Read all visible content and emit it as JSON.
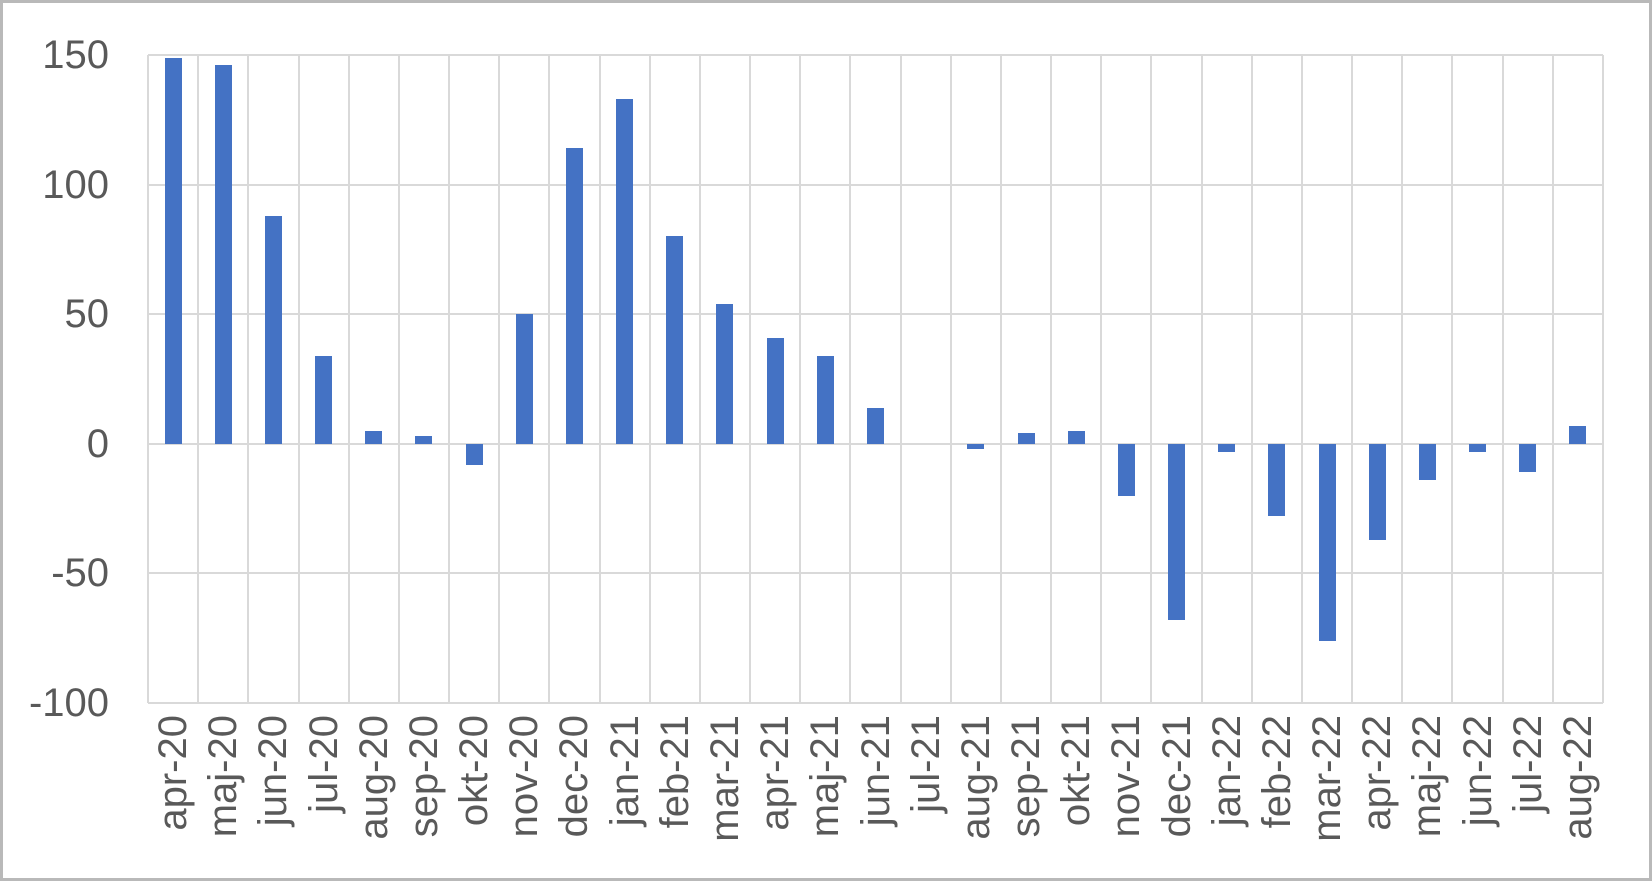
{
  "chart_data": {
    "type": "bar",
    "title": "",
    "xlabel": "",
    "ylabel": "",
    "categories": [
      "apr-20",
      "maj-20",
      "jun-20",
      "jul-20",
      "aug-20",
      "sep-20",
      "okt-20",
      "nov-20",
      "dec-20",
      "jan-21",
      "feb-21",
      "mar-21",
      "apr-21",
      "maj-21",
      "jun-21",
      "jul-21",
      "aug-21",
      "sep-21",
      "okt-21",
      "nov-21",
      "dec-21",
      "jan-22",
      "feb-22",
      "mar-22",
      "apr-22",
      "maj-22",
      "jun-22",
      "jul-22",
      "aug-22"
    ],
    "values": [
      149,
      146,
      88,
      34,
      5,
      3,
      -8,
      50,
      114,
      133,
      80,
      54,
      41,
      34,
      14,
      0,
      -2,
      4,
      5,
      -20,
      -68,
      -3,
      -28,
      -76,
      -37,
      -14,
      -3,
      -11,
      7
    ],
    "ylim": [
      -100,
      150
    ],
    "yticks": [
      150,
      100,
      50,
      0,
      -50,
      -100
    ],
    "grid": true,
    "legend": false,
    "colors": {
      "bar": "#4472C4",
      "gridline": "#D9D9D9",
      "axis_text": "#595959",
      "background": "#FFFFFF",
      "frame_border": "#B9B9B9"
    }
  }
}
